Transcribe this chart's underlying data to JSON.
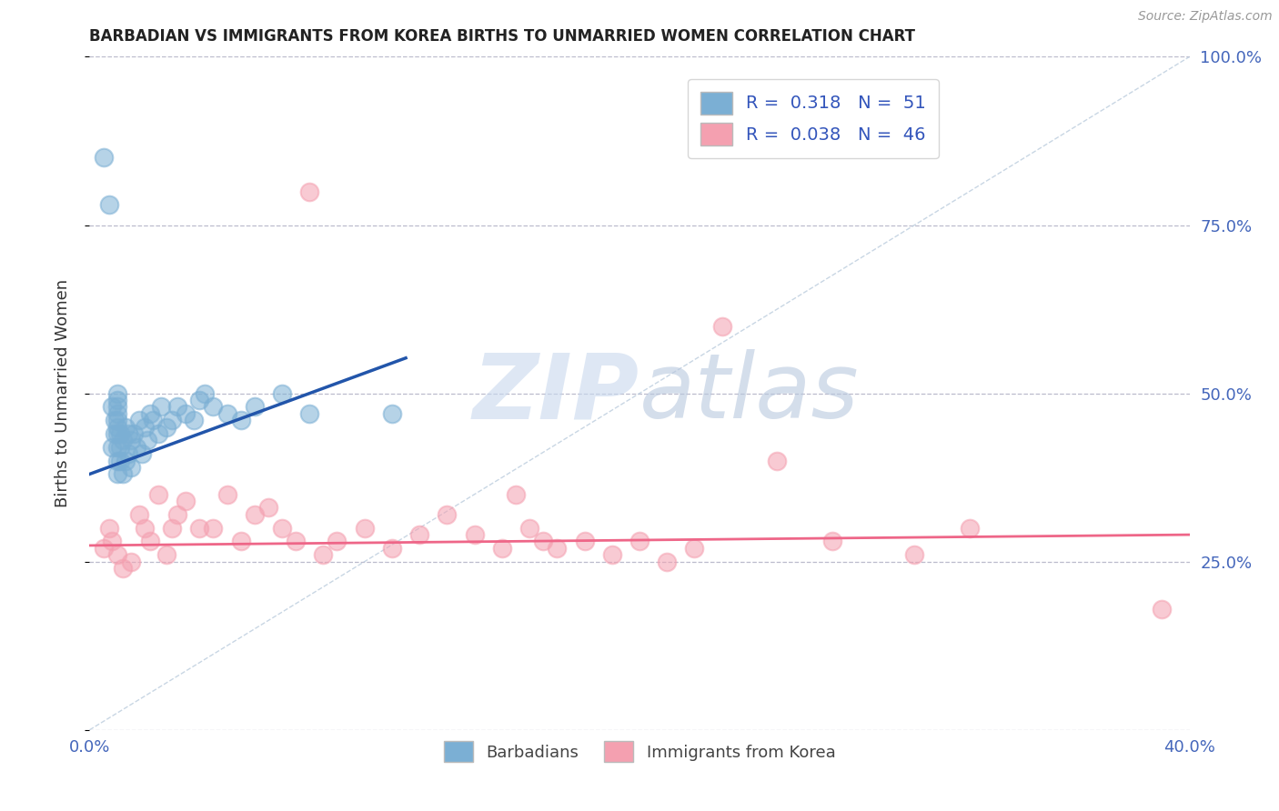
{
  "title": "BARBADIAN VS IMMIGRANTS FROM KOREA BIRTHS TO UNMARRIED WOMEN CORRELATION CHART",
  "source": "Source: ZipAtlas.com",
  "ylabel": "Births to Unmarried Women",
  "y_ticks": [
    0.0,
    0.25,
    0.5,
    0.75,
    1.0
  ],
  "y_tick_labels_right": [
    "",
    "25.0%",
    "50.0%",
    "75.0%",
    "100.0%"
  ],
  "legend_blue_label": "R =  0.318   N =  51",
  "legend_pink_label": "R =  0.038   N =  46",
  "legend_label_barbadians": "Barbadians",
  "legend_label_korea": "Immigrants from Korea",
  "blue_R": 0.318,
  "pink_R": 0.038,
  "blue_color": "#7BAFD4",
  "pink_color": "#F4A0B0",
  "blue_line_color": "#2255AA",
  "pink_line_color": "#EE6688",
  "watermark_zip": "ZIP",
  "watermark_atlas": "atlas",
  "background_color": "#FFFFFF",
  "grid_color": "#BBBBCC",
  "xlim": [
    0.0,
    0.4
  ],
  "ylim": [
    0.0,
    1.0
  ],
  "blue_scatter_x": [
    0.005,
    0.007,
    0.008,
    0.008,
    0.009,
    0.009,
    0.01,
    0.01,
    0.01,
    0.01,
    0.01,
    0.01,
    0.01,
    0.01,
    0.01,
    0.01,
    0.011,
    0.011,
    0.011,
    0.012,
    0.012,
    0.013,
    0.013,
    0.014,
    0.014,
    0.015,
    0.015,
    0.016,
    0.017,
    0.018,
    0.019,
    0.02,
    0.021,
    0.022,
    0.023,
    0.025,
    0.026,
    0.028,
    0.03,
    0.032,
    0.035,
    0.038,
    0.04,
    0.042,
    0.045,
    0.05,
    0.055,
    0.06,
    0.07,
    0.08,
    0.11
  ],
  "blue_scatter_y": [
    0.85,
    0.78,
    0.42,
    0.48,
    0.44,
    0.46,
    0.38,
    0.4,
    0.42,
    0.44,
    0.45,
    0.46,
    0.47,
    0.48,
    0.49,
    0.5,
    0.4,
    0.42,
    0.44,
    0.38,
    0.43,
    0.4,
    0.45,
    0.41,
    0.44,
    0.39,
    0.43,
    0.44,
    0.42,
    0.46,
    0.41,
    0.45,
    0.43,
    0.47,
    0.46,
    0.44,
    0.48,
    0.45,
    0.46,
    0.48,
    0.47,
    0.46,
    0.49,
    0.5,
    0.48,
    0.47,
    0.46,
    0.48,
    0.5,
    0.47,
    0.47
  ],
  "pink_scatter_x": [
    0.005,
    0.007,
    0.008,
    0.01,
    0.012,
    0.015,
    0.018,
    0.02,
    0.022,
    0.025,
    0.028,
    0.03,
    0.032,
    0.035,
    0.04,
    0.045,
    0.05,
    0.055,
    0.06,
    0.065,
    0.07,
    0.075,
    0.08,
    0.085,
    0.09,
    0.1,
    0.11,
    0.12,
    0.13,
    0.14,
    0.15,
    0.155,
    0.16,
    0.165,
    0.17,
    0.18,
    0.19,
    0.2,
    0.21,
    0.22,
    0.23,
    0.25,
    0.27,
    0.3,
    0.32,
    0.39
  ],
  "pink_scatter_y": [
    0.27,
    0.3,
    0.28,
    0.26,
    0.24,
    0.25,
    0.32,
    0.3,
    0.28,
    0.35,
    0.26,
    0.3,
    0.32,
    0.34,
    0.3,
    0.3,
    0.35,
    0.28,
    0.32,
    0.33,
    0.3,
    0.28,
    0.8,
    0.26,
    0.28,
    0.3,
    0.27,
    0.29,
    0.32,
    0.29,
    0.27,
    0.35,
    0.3,
    0.28,
    0.27,
    0.28,
    0.26,
    0.28,
    0.25,
    0.27,
    0.6,
    0.4,
    0.28,
    0.26,
    0.3,
    0.18
  ]
}
